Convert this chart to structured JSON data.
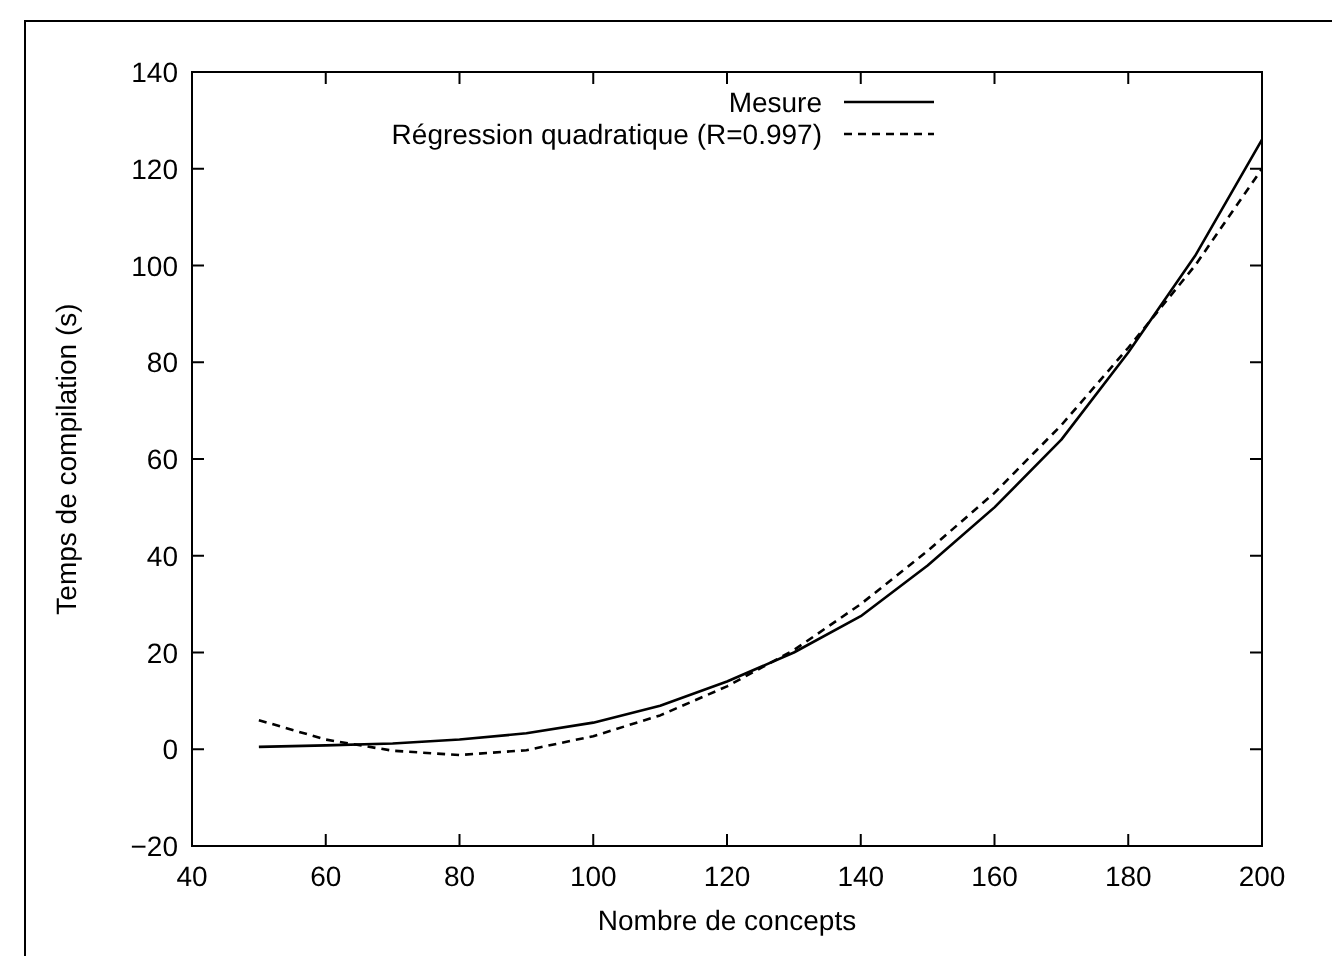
{
  "chart_data": {
    "type": "line",
    "xlabel": "Nombre de concepts",
    "ylabel": "Temps de compilation (s)",
    "x": [
      50,
      60,
      70,
      80,
      90,
      100,
      110,
      120,
      130,
      140,
      150,
      160,
      170,
      180,
      190,
      200
    ],
    "series": [
      {
        "name": "Mesure",
        "color": "#000000",
        "line_style": "solid",
        "values": [
          0.5,
          0.8,
          1.2,
          2,
          3.3,
          5.5,
          9,
          14,
          20,
          27.5,
          38,
          50,
          64,
          82,
          102,
          126
        ]
      },
      {
        "name": "Régression quadratique (R=0.997)",
        "color": "#000000",
        "line_style": "dashed",
        "values": [
          6,
          2,
          -0.3,
          -1.2,
          -0.2,
          2.7,
          7,
          13,
          20.5,
          30,
          41,
          53,
          67,
          83,
          100,
          120
        ]
      }
    ],
    "xlim": [
      40,
      200
    ],
    "xticks": [
      40,
      60,
      80,
      100,
      120,
      140,
      160,
      180,
      200
    ],
    "ylim": [
      -20,
      140
    ],
    "yticks": [
      {
        "value": -20,
        "label": "−20"
      },
      0,
      20,
      40,
      60,
      80,
      100,
      120,
      140
    ],
    "grid": false,
    "legend": "top",
    "marker": "none"
  }
}
